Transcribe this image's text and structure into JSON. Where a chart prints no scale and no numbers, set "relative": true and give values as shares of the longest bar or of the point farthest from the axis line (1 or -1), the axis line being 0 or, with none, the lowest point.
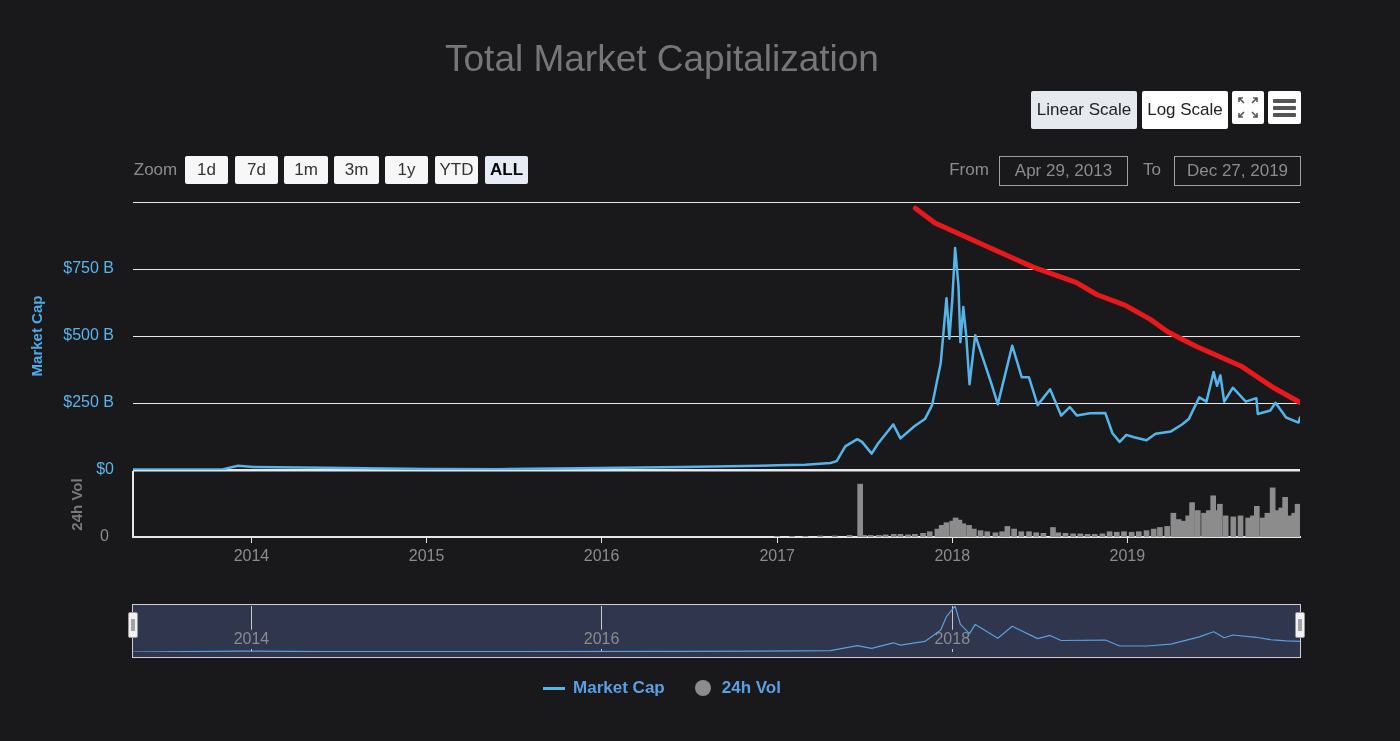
{
  "chart_data": [
    {
      "type": "line",
      "title": "Total Market Capitalization",
      "ylabel": "Market Cap",
      "xlim": [
        "2013-04-29",
        "2019-12-27"
      ],
      "ylim": [
        0,
        1000
      ],
      "yticks": [
        {
          "value": 0,
          "label": "$0"
        },
        {
          "value": 250,
          "label": "$250 B"
        },
        {
          "value": 500,
          "label": "$500 B"
        },
        {
          "value": 750,
          "label": "$750 B"
        },
        {
          "value": 1000,
          "label": null
        }
      ],
      "grid": "y",
      "tick_labels": "y",
      "legend": "bottom",
      "annotations": [
        "Zoom",
        "1d",
        "7d",
        "1m",
        "3m",
        "1y",
        "YTD",
        "ALL",
        "From",
        "Apr 29, 2013",
        "To",
        "Dec 27, 2019",
        "Linear Scale",
        "Log Scale"
      ],
      "series": [
        {
          "name": "Market Cap",
          "color": "#55b4ea",
          "x": [
            "2013-04-29",
            "2013-11-01",
            "2013-12-04",
            "2014-01-05",
            "2014-06-01",
            "2015-01-01",
            "2015-06-01",
            "2016-01-01",
            "2016-06-18",
            "2016-11-28",
            "2017-01-01",
            "2017-03-01",
            "2017-04-22",
            "2017-05-05",
            "2017-05-23",
            "2017-06-17",
            "2017-06-27",
            "2017-07-17",
            "2017-07-30",
            "2017-08-31",
            "2017-09-15",
            "2017-10-14",
            "2017-11-05",
            "2017-11-20",
            "2017-12-08",
            "2017-12-20",
            "2017-12-26",
            "2018-01-01",
            "2018-01-07",
            "2018-01-14",
            "2018-01-18",
            "2018-01-24",
            "2018-01-30",
            "2018-02-06",
            "2018-02-18",
            "2018-03-02",
            "2018-03-24",
            "2018-04-06",
            "2018-05-06",
            "2018-05-26",
            "2018-06-10",
            "2018-06-28",
            "2018-07-24",
            "2018-08-16",
            "2018-09-03",
            "2018-09-18",
            "2018-10-15",
            "2018-11-16",
            "2018-12-01",
            "2018-12-16",
            "2018-12-30",
            "2019-01-15",
            "2019-02-10",
            "2019-03-01",
            "2019-04-02",
            "2019-04-25",
            "2019-05-09",
            "2019-05-31",
            "2019-06-15",
            "2019-06-30",
            "2019-07-07",
            "2019-07-14",
            "2019-07-22",
            "2019-08-09",
            "2019-09-05",
            "2019-09-27",
            "2019-09-30",
            "2019-10-26",
            "2019-11-06",
            "2019-11-28",
            "2019-12-24",
            "2019-12-27"
          ],
          "values": [
            2,
            2,
            16,
            11,
            8,
            4,
            3,
            7,
            11,
            16,
            18,
            20,
            26,
            33,
            88,
            115,
            105,
            61,
            98,
            170,
            118,
            163,
            190,
            242,
            399,
            641,
            490,
            634,
            828,
            686,
            477,
            608,
            503,
            320,
            503,
            438,
            320,
            245,
            464,
            346,
            346,
            242,
            301,
            203,
            235,
            203,
            212,
            213,
            137,
            105,
            131,
            122,
            111,
            135,
            144,
            170,
            190,
            271,
            255,
            366,
            314,
            353,
            255,
            307,
            255,
            268,
            209,
            222,
            251,
            196,
            177,
            196
          ]
        },
        {
          "color": "#e8191c",
          "x": [
            "2017-10-16",
            "2017-11-26",
            "2018-02-23",
            "2018-05-07",
            "2018-06-20",
            "2018-09-16",
            "2018-10-30",
            "2018-12-27",
            "2019-02-18",
            "2019-03-26",
            "2019-05-24",
            "2019-08-28",
            "2019-11-02",
            "2019-12-27"
          ],
          "values": [
            977,
            922,
            850,
            791,
            756,
            700,
            654,
            615,
            562,
            516,
            462,
            386,
            307,
            252
          ]
        }
      ]
    },
    {
      "type": "bar",
      "ylabel": "24h Vol",
      "relative": true,
      "xlim": [
        "2013-04-29",
        "2019-12-27"
      ],
      "xticks": [
        "2014",
        "2015",
        "2016",
        "2017",
        "2018",
        "2019"
      ],
      "legend": "bottom",
      "annotations": [
        "0"
      ],
      "series": [
        {
          "name": "24h Vol",
          "color": "#8c8c8c",
          "x": [
            "2017-01-01",
            "2017-02-01",
            "2017-03-01",
            "2017-04-01",
            "2017-05-01",
            "2017-06-01",
            "2017-06-23",
            "2017-07-01",
            "2017-07-15",
            "2017-08-01",
            "2017-08-15",
            "2017-09-01",
            "2017-09-15",
            "2017-10-01",
            "2017-10-15",
            "2017-11-01",
            "2017-11-15",
            "2017-12-01",
            "2017-12-10",
            "2017-12-20",
            "2018-01-01",
            "2018-01-08",
            "2018-01-16",
            "2018-01-24",
            "2018-02-05",
            "2018-02-15",
            "2018-03-01",
            "2018-03-15",
            "2018-04-01",
            "2018-04-15",
            "2018-04-26",
            "2018-05-10",
            "2018-05-25",
            "2018-06-10",
            "2018-06-25",
            "2018-07-10",
            "2018-07-30",
            "2018-08-10",
            "2018-08-25",
            "2018-09-10",
            "2018-09-25",
            "2018-10-10",
            "2018-10-25",
            "2018-11-10",
            "2018-11-25",
            "2018-12-10",
            "2018-12-25",
            "2019-01-10",
            "2019-01-25",
            "2019-02-10",
            "2019-02-25",
            "2019-03-10",
            "2019-03-25",
            "2019-04-07",
            "2019-04-18",
            "2019-04-28",
            "2019-05-08",
            "2019-05-16",
            "2019-05-28",
            "2019-06-10",
            "2019-06-20",
            "2019-06-29",
            "2019-07-06",
            "2019-07-13",
            "2019-07-25",
            "2019-08-10",
            "2019-08-25",
            "2019-09-10",
            "2019-09-20",
            "2019-09-28",
            "2019-10-10",
            "2019-10-20",
            "2019-10-31",
            "2019-11-08",
            "2019-11-18",
            "2019-11-26",
            "2019-12-05",
            "2019-12-15",
            "2019-12-22"
          ],
          "values": [
            0.01,
            0.01,
            0.01,
            0.02,
            0.02,
            0.03,
            1,
            0.03,
            0.03,
            0.03,
            0.04,
            0.05,
            0.05,
            0.04,
            0.05,
            0.07,
            0.1,
            0.15,
            0.22,
            0.27,
            0.3,
            0.36,
            0.32,
            0.25,
            0.22,
            0.15,
            0.12,
            0.1,
            0.08,
            0.1,
            0.2,
            0.15,
            0.1,
            0.1,
            0.08,
            0.07,
            0.18,
            0.08,
            0.07,
            0.06,
            0.06,
            0.05,
            0.05,
            0.06,
            0.1,
            0.09,
            0.1,
            0.09,
            0.1,
            0.12,
            0.15,
            0.18,
            0.2,
            0.45,
            0.33,
            0.3,
            0.4,
            0.65,
            0.5,
            0.45,
            0.5,
            0.78,
            0.5,
            0.62,
            0.4,
            0.38,
            0.4,
            0.36,
            0.4,
            0.58,
            0.36,
            0.45,
            0.93,
            0.5,
            0.55,
            0.75,
            0.4,
            0.45,
            0.62
          ]
        }
      ]
    },
    {
      "type": "line",
      "relative": true,
      "xlim": [
        "2013-04-29",
        "2019-12-27"
      ],
      "xticks": [
        "2014",
        "2016",
        "2018"
      ],
      "grid": "x",
      "tick_labels": "x",
      "series": [
        {
          "color": "#5a9fe0",
          "x": [
            "2013-04-29",
            "2013-12-04",
            "2014-06-01",
            "2015-06-01",
            "2016-06-18",
            "2016-11-28",
            "2017-04-22",
            "2017-06-17",
            "2017-07-17",
            "2017-08-31",
            "2017-09-15",
            "2017-11-05",
            "2017-12-08",
            "2017-12-20",
            "2018-01-07",
            "2018-01-18",
            "2018-02-06",
            "2018-02-18",
            "2018-04-06",
            "2018-05-06",
            "2018-06-28",
            "2018-07-24",
            "2018-08-16",
            "2018-11-16",
            "2018-12-16",
            "2019-02-10",
            "2019-04-02",
            "2019-05-31",
            "2019-06-30",
            "2019-07-22",
            "2019-08-09",
            "2019-09-27",
            "2019-10-26",
            "2019-11-28",
            "2019-12-27"
          ],
          "values": [
            0,
            0.02,
            0.01,
            0.01,
            0.015,
            0.02,
            0.03,
            0.14,
            0.08,
            0.2,
            0.15,
            0.23,
            0.48,
            0.77,
            1,
            0.6,
            0.4,
            0.6,
            0.3,
            0.56,
            0.29,
            0.36,
            0.25,
            0.26,
            0.13,
            0.13,
            0.17,
            0.33,
            0.44,
            0.31,
            0.37,
            0.32,
            0.27,
            0.24,
            0.23
          ]
        }
      ]
    }
  ]
}
